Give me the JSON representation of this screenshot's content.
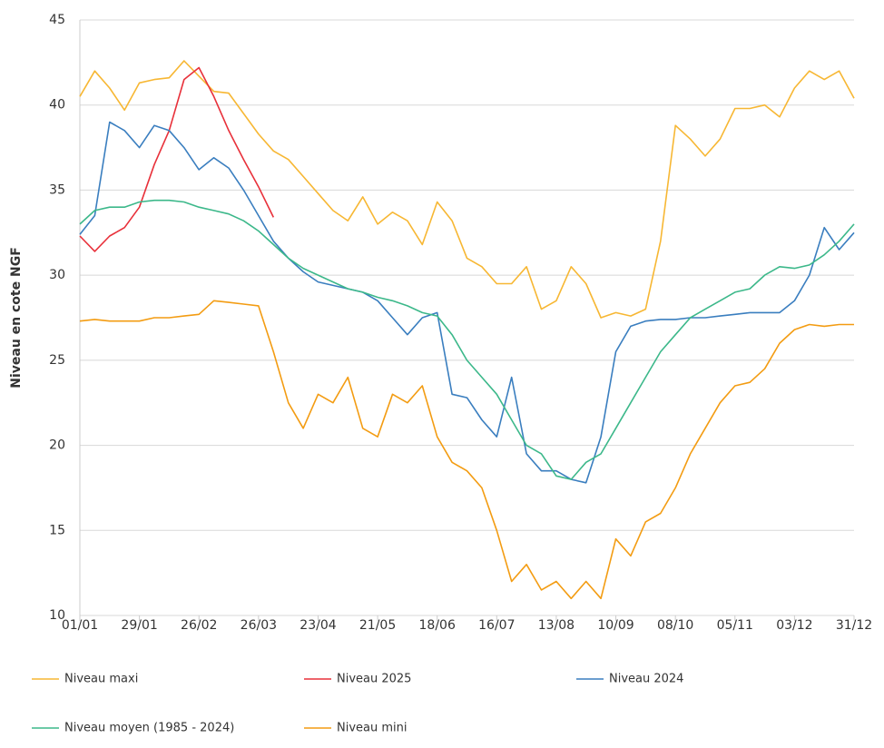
{
  "chart_data": {
    "type": "line",
    "ylabel": "Niveau en cote NGF",
    "x": [
      0,
      7,
      14,
      21,
      28,
      35,
      42,
      49,
      56,
      63,
      70,
      77,
      84,
      91,
      98,
      105,
      112,
      119,
      126,
      133,
      140,
      147,
      154,
      161,
      168,
      175,
      182,
      189,
      196,
      203,
      210,
      217,
      224,
      231,
      238,
      245,
      252,
      259,
      266,
      273,
      280,
      287,
      294,
      301,
      308,
      315,
      322,
      329,
      336,
      343,
      350,
      357,
      364
    ],
    "xlim": [
      0,
      364
    ],
    "xticks": [
      {
        "value": 0,
        "label": "01/01"
      },
      {
        "value": 28,
        "label": "29/01"
      },
      {
        "value": 56,
        "label": "26/02"
      },
      {
        "value": 84,
        "label": "26/03"
      },
      {
        "value": 112,
        "label": "23/04"
      },
      {
        "value": 140,
        "label": "21/05"
      },
      {
        "value": 168,
        "label": "18/06"
      },
      {
        "value": 196,
        "label": "16/07"
      },
      {
        "value": 224,
        "label": "13/08"
      },
      {
        "value": 252,
        "label": "10/09"
      },
      {
        "value": 280,
        "label": "08/10"
      },
      {
        "value": 308,
        "label": "05/11"
      },
      {
        "value": 336,
        "label": "03/12"
      },
      {
        "value": 364,
        "label": "31/12"
      }
    ],
    "ylim": [
      10,
      45
    ],
    "yticks": [
      10,
      15,
      20,
      25,
      30,
      35,
      40,
      45
    ],
    "grid": true,
    "legend": "bottom",
    "series": [
      {
        "name": "Niveau maxi",
        "color": "#f7b733",
        "values": [
          40.5,
          42,
          41,
          39.7,
          41.3,
          41.5,
          41.6,
          42.6,
          41.7,
          40.8,
          40.7,
          39.5,
          38.3,
          37.3,
          36.8,
          35.8,
          34.8,
          33.8,
          33.2,
          34.6,
          33.0,
          33.7,
          33.2,
          31.8,
          34.3,
          33.2,
          31.0,
          30.5,
          29.5,
          29.5,
          30.5,
          28.0,
          28.5,
          30.5,
          29.5,
          27.5,
          27.8,
          27.6,
          28.0,
          32.0,
          38.8,
          38.0,
          37.0,
          38.0,
          39.8,
          39.8,
          40.0,
          39.3,
          41.0,
          42.0,
          41.5,
          42.0,
          40.4
        ]
      },
      {
        "name": "Niveau 2025",
        "color": "#e8303a",
        "values": [
          32.3,
          31.4,
          32.3,
          32.8,
          34.0,
          36.5,
          38.5,
          41.5,
          42.2,
          40.5,
          38.5,
          36.8,
          35.2,
          33.4,
          null,
          null,
          null,
          null,
          null,
          null,
          null,
          null,
          null,
          null,
          null,
          null,
          null,
          null,
          null,
          null,
          null,
          null,
          null,
          null,
          null,
          null,
          null,
          null,
          null,
          null,
          null,
          null,
          null,
          null,
          null,
          null,
          null,
          null,
          null,
          null,
          null,
          null,
          null
        ]
      },
      {
        "name": "Niveau 2024",
        "color": "#3a7ebf",
        "values": [
          32.4,
          33.5,
          39.0,
          38.5,
          37.5,
          38.8,
          38.5,
          37.5,
          36.2,
          36.9,
          36.3,
          35.0,
          33.5,
          32.0,
          31.0,
          30.2,
          29.6,
          29.4,
          29.2,
          29.0,
          28.5,
          27.5,
          26.5,
          27.5,
          27.8,
          23.0,
          22.8,
          21.5,
          20.5,
          24.0,
          19.5,
          18.5,
          18.5,
          18.0,
          17.8,
          20.5,
          25.5,
          27.0,
          27.3,
          27.4,
          27.4,
          27.5,
          27.5,
          27.6,
          27.7,
          27.8,
          27.8,
          27.8,
          28.5,
          30.0,
          32.8,
          31.5,
          32.5
        ]
      },
      {
        "name": "Niveau moyen (1985 - 2024)",
        "color": "#3cb88a",
        "values": [
          33.0,
          33.8,
          34.0,
          34.0,
          34.3,
          34.4,
          34.4,
          34.3,
          34.0,
          33.8,
          33.6,
          33.2,
          32.6,
          31.8,
          31.0,
          30.4,
          30.0,
          29.6,
          29.2,
          29.0,
          28.7,
          28.5,
          28.2,
          27.8,
          27.6,
          26.5,
          25.0,
          24.0,
          23.0,
          21.5,
          20.0,
          19.5,
          18.2,
          18.0,
          19.0,
          19.5,
          21.0,
          22.5,
          24.0,
          25.5,
          26.5,
          27.5,
          28.0,
          28.5,
          29.0,
          29.2,
          30.0,
          30.5,
          30.4,
          30.6,
          31.2,
          32.0,
          33.0
        ]
      },
      {
        "name": "Niveau mini",
        "color": "#f39c12",
        "values": [
          27.3,
          27.4,
          27.3,
          27.3,
          27.3,
          27.5,
          27.5,
          27.6,
          27.7,
          28.5,
          28.4,
          28.3,
          28.2,
          25.5,
          22.5,
          21.0,
          23.0,
          22.5,
          24.0,
          21.0,
          20.5,
          23.0,
          22.5,
          23.5,
          20.5,
          19.0,
          18.5,
          17.5,
          15.0,
          12.0,
          13.0,
          11.5,
          12.0,
          11.0,
          12.0,
          11.0,
          14.5,
          13.5,
          15.5,
          16.0,
          17.5,
          19.5,
          21.0,
          22.5,
          23.5,
          23.7,
          24.5,
          26.0,
          26.8,
          27.1,
          27.0,
          27.1,
          27.1
        ]
      }
    ]
  }
}
